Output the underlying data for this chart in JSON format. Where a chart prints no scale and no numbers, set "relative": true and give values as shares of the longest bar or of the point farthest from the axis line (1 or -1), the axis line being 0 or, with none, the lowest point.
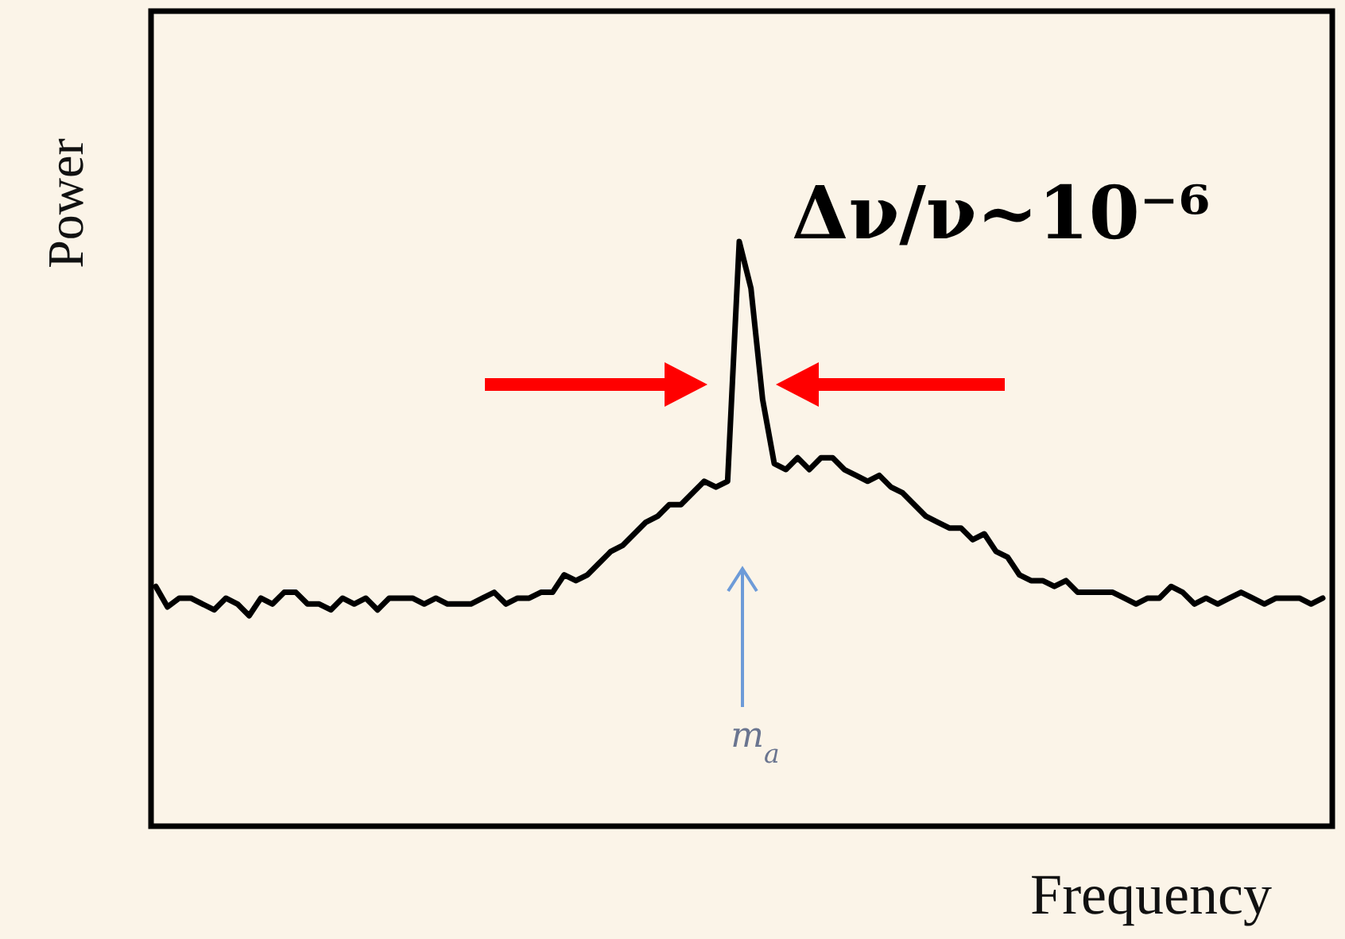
{
  "chart_data": {
    "type": "line",
    "relative": true,
    "xlabel": "Frequency",
    "ylabel": "Power",
    "annotations": [
      "Δν/ν~10⁻⁶",
      "m$_{a}$"
    ],
    "categories": [
      null,
      null,
      null,
      null,
      null,
      null,
      null,
      null,
      null,
      null,
      null,
      null,
      null,
      null,
      null,
      null,
      null,
      null,
      null,
      null,
      null,
      null,
      null,
      null,
      null,
      null,
      null,
      null,
      null,
      null,
      null,
      null,
      null,
      null,
      null,
      null,
      null,
      null,
      null,
      null,
      null,
      null,
      null,
      null,
      null,
      null,
      null,
      null,
      null,
      null,
      null,
      null,
      null,
      null,
      null,
      null,
      null,
      null,
      null,
      null,
      null,
      null,
      null,
      null,
      null,
      null,
      null,
      null,
      null,
      null,
      null,
      null,
      null,
      null,
      null,
      null,
      null,
      null,
      null,
      null,
      null,
      null,
      null,
      null,
      null,
      null,
      null,
      null,
      null,
      null,
      null,
      null,
      null,
      null,
      null,
      null,
      null,
      null,
      null,
      null,
      null
    ],
    "series": [
      {
        "color": "#000000",
        "values": [
          0.41,
          0.375,
          0.39,
          0.39,
          0.38,
          0.37,
          0.39,
          0.38,
          0.36,
          0.39,
          0.38,
          0.4,
          0.4,
          0.38,
          0.38,
          0.37,
          0.39,
          0.38,
          0.39,
          0.37,
          0.39,
          0.39,
          0.39,
          0.38,
          0.39,
          0.38,
          0.38,
          0.38,
          0.39,
          0.4,
          0.38,
          0.39,
          0.39,
          0.4,
          0.4,
          0.43,
          0.42,
          0.43,
          0.45,
          0.47,
          0.48,
          0.5,
          0.52,
          0.53,
          0.55,
          0.55,
          0.57,
          0.59,
          0.58,
          0.59,
          1.0,
          0.92,
          0.73,
          0.62,
          0.61,
          0.63,
          0.61,
          0.63,
          0.63,
          0.61,
          0.6,
          0.59,
          0.6,
          0.58,
          0.57,
          0.55,
          0.53,
          0.52,
          0.51,
          0.51,
          0.49,
          0.5,
          0.47,
          0.46,
          0.43,
          0.42,
          0.42,
          0.41,
          0.42,
          0.4,
          0.4,
          0.4,
          0.4,
          0.39,
          0.38,
          0.39,
          0.39,
          0.41,
          0.4,
          0.38,
          0.39,
          0.38,
          0.39,
          0.4,
          0.39,
          0.38,
          0.39,
          0.39,
          0.39,
          0.38,
          0.39
        ]
      }
    ],
    "marker": "none",
    "line_style": "solid"
  }
}
